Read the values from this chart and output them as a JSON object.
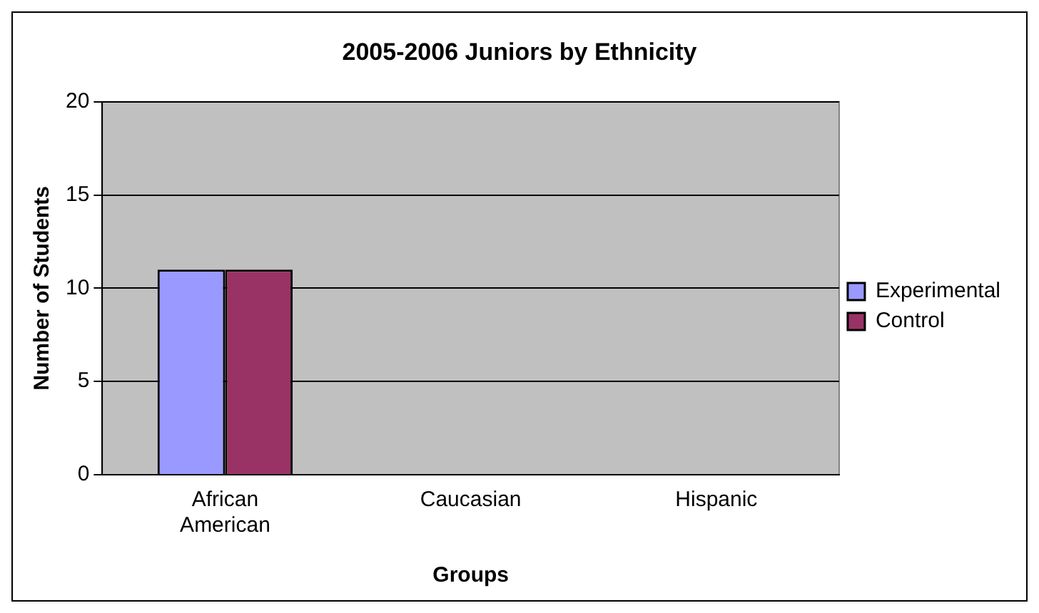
{
  "chart_data": {
    "type": "bar",
    "title": "2005-2006 Juniors by Ethnicity",
    "xlabel": "Groups",
    "ylabel": "Number of Students",
    "categories": [
      "African American",
      "Caucasian",
      "Hispanic"
    ],
    "series": [
      {
        "name": "Experimental",
        "color": "#9999ff",
        "values": [
          11,
          0,
          0
        ]
      },
      {
        "name": "Control",
        "color": "#993366",
        "values": [
          11,
          0,
          0
        ]
      }
    ],
    "ylim": [
      0,
      20
    ],
    "yticks": [
      0,
      5,
      10,
      15,
      20
    ],
    "grid": "y",
    "legend": "right"
  }
}
